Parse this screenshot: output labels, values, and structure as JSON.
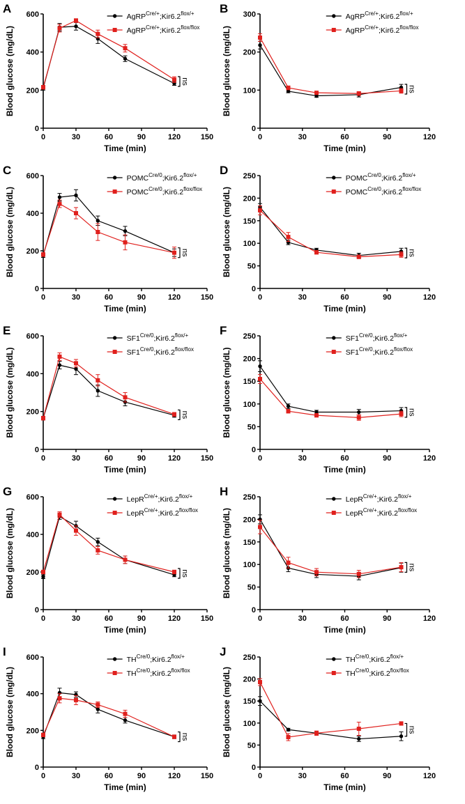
{
  "figure": {
    "xlabel": "Time (min)",
    "ylabel": "Blood glucose (mg/dL)"
  },
  "colors": {
    "control": "#000000",
    "knockout": "#e0201d"
  },
  "chart_data": [
    {
      "panel": "A",
      "type": "line",
      "xlim": [
        0,
        150
      ],
      "ylim": [
        0,
        600
      ],
      "xticks": [
        0,
        30,
        60,
        90,
        120,
        150
      ],
      "yticks": [
        0,
        200,
        400,
        600
      ],
      "x": [
        0,
        15,
        30,
        50,
        75,
        120
      ],
      "xlabel": "Time (min)",
      "ylabel": "Blood glucose (mg/dL)",
      "significance": "ns",
      "legend_pos": "top-right",
      "series": [
        {
          "name_main": "AgRP",
          "name_sup1": "Cre/+",
          "name_mid": ";Kir6.2",
          "name_sup2": "flox/+",
          "color": "#000000",
          "marker": "circle",
          "values": [
            210,
            530,
            535,
            470,
            365,
            235
          ],
          "errors": [
            10,
            20,
            20,
            25,
            15,
            10
          ]
        },
        {
          "name_main": "AgRP",
          "name_sup1": "Cre/+",
          "name_mid": ";Kir6.2",
          "name_sup2": "flox/flox",
          "color": "#e0201d",
          "marker": "square",
          "values": [
            215,
            525,
            565,
            495,
            420,
            255
          ],
          "errors": [
            10,
            20,
            10,
            20,
            20,
            15
          ]
        }
      ]
    },
    {
      "panel": "B",
      "type": "line",
      "xlim": [
        0,
        120
      ],
      "ylim": [
        0,
        300
      ],
      "xticks": [
        0,
        30,
        60,
        90,
        120
      ],
      "yticks": [
        0,
        100,
        200,
        300
      ],
      "x": [
        0,
        20,
        40,
        70,
        100
      ],
      "xlabel": "Time (min)",
      "ylabel": "Blood glucose (mg/dL)",
      "significance": "ns",
      "legend_pos": "top-right",
      "series": [
        {
          "name_main": "AgRP",
          "name_sup1": "Cre/+",
          "name_mid": ";Kir6.2",
          "name_sup2": "flox/+",
          "color": "#000000",
          "marker": "circle",
          "values": [
            218,
            97,
            85,
            88,
            107
          ],
          "errors": [
            10,
            4,
            4,
            6,
            8
          ]
        },
        {
          "name_main": "AgRP",
          "name_sup1": "Cre/+",
          "name_mid": ";Kir6.2",
          "name_sup2": "flox/flox",
          "color": "#e0201d",
          "marker": "square",
          "values": [
            238,
            106,
            93,
            91,
            98
          ],
          "errors": [
            10,
            5,
            4,
            5,
            6
          ]
        }
      ]
    },
    {
      "panel": "C",
      "type": "line",
      "xlim": [
        0,
        150
      ],
      "ylim": [
        0,
        600
      ],
      "xticks": [
        0,
        30,
        60,
        90,
        120,
        150
      ],
      "yticks": [
        0,
        200,
        400,
        600
      ],
      "x": [
        0,
        15,
        30,
        50,
        75,
        120
      ],
      "xlabel": "Time (min)",
      "ylabel": "Blood glucose (mg/dL)",
      "significance": "ns",
      "legend_pos": "top-right",
      "series": [
        {
          "name_main": "POMC",
          "name_sup1": "Cre/0",
          "name_mid": ";Kir6.2",
          "name_sup2": "flox/+",
          "color": "#000000",
          "marker": "circle",
          "values": [
            175,
            485,
            495,
            360,
            305,
            190
          ],
          "errors": [
            10,
            20,
            30,
            25,
            25,
            20
          ]
        },
        {
          "name_main": "POMC",
          "name_sup1": "Cre/0",
          "name_mid": ";Kir6.2",
          "name_sup2": "flox/flox",
          "color": "#e0201d",
          "marker": "square",
          "values": [
            180,
            450,
            400,
            300,
            245,
            190
          ],
          "errors": [
            10,
            20,
            30,
            45,
            40,
            30
          ]
        }
      ]
    },
    {
      "panel": "D",
      "type": "line",
      "xlim": [
        0,
        120
      ],
      "ylim": [
        0,
        250
      ],
      "xticks": [
        0,
        30,
        60,
        90,
        120
      ],
      "yticks": [
        0,
        50,
        100,
        150,
        200,
        250
      ],
      "x": [
        0,
        20,
        40,
        70,
        100
      ],
      "xlabel": "Time (min)",
      "ylabel": "Blood glucose (mg/dL)",
      "significance": "ns",
      "legend_pos": "top-right",
      "series": [
        {
          "name_main": "POMC",
          "name_sup1": "Cre/0",
          "name_mid": ";Kir6.2",
          "name_sup2": "flox/+",
          "color": "#000000",
          "marker": "circle",
          "values": [
            180,
            102,
            85,
            73,
            82
          ],
          "errors": [
            8,
            5,
            4,
            5,
            7
          ]
        },
        {
          "name_main": "POMC",
          "name_sup1": "Cre/0",
          "name_mid": ";Kir6.2",
          "name_sup2": "flox/flox",
          "color": "#e0201d",
          "marker": "square",
          "values": [
            173,
            114,
            80,
            70,
            75
          ],
          "errors": [
            10,
            10,
            4,
            4,
            6
          ]
        }
      ]
    },
    {
      "panel": "E",
      "type": "line",
      "xlim": [
        0,
        150
      ],
      "ylim": [
        0,
        600
      ],
      "xticks": [
        0,
        30,
        60,
        90,
        120,
        150
      ],
      "yticks": [
        0,
        200,
        400,
        600
      ],
      "x": [
        0,
        15,
        30,
        50,
        75,
        120
      ],
      "xlabel": "Time (min)",
      "ylabel": "Blood glucose (mg/dL)",
      "significance": "ns",
      "legend_pos": "top-right",
      "series": [
        {
          "name_main": "SF1",
          "name_sup1": "Cre/0",
          "name_mid": ";Kir6.2",
          "name_sup2": "flox/+",
          "color": "#000000",
          "marker": "circle",
          "values": [
            165,
            445,
            425,
            310,
            250,
            180
          ],
          "errors": [
            10,
            20,
            30,
            30,
            20,
            10
          ]
        },
        {
          "name_main": "SF1",
          "name_sup1": "Cre/0",
          "name_mid": ";Kir6.2",
          "name_sup2": "flox/flox",
          "color": "#e0201d",
          "marker": "square",
          "values": [
            165,
            490,
            455,
            365,
            275,
            185
          ],
          "errors": [
            10,
            20,
            20,
            30,
            25,
            10
          ]
        }
      ]
    },
    {
      "panel": "F",
      "type": "line",
      "xlim": [
        0,
        120
      ],
      "ylim": [
        0,
        250
      ],
      "xticks": [
        0,
        30,
        60,
        90,
        120
      ],
      "yticks": [
        0,
        50,
        100,
        150,
        200,
        250
      ],
      "x": [
        0,
        20,
        40,
        70,
        100
      ],
      "xlabel": "Time (min)",
      "ylabel": "Blood glucose (mg/dL)",
      "significance": "ns",
      "legend_pos": "top-right",
      "series": [
        {
          "name_main": "SF1",
          "name_sup1": "Cre/0",
          "name_mid": ";Kir6.2",
          "name_sup2": "flox/+",
          "color": "#000000",
          "marker": "circle",
          "values": [
            183,
            95,
            82,
            82,
            85
          ],
          "errors": [
            12,
            5,
            4,
            6,
            7
          ]
        },
        {
          "name_main": "SF1",
          "name_sup1": "Cre/0",
          "name_mid": ";Kir6.2",
          "name_sup2": "flox/flox",
          "color": "#e0201d",
          "marker": "square",
          "values": [
            155,
            84,
            75,
            70,
            78
          ],
          "errors": [
            10,
            4,
            4,
            6,
            6
          ]
        }
      ]
    },
    {
      "panel": "G",
      "type": "line",
      "xlim": [
        0,
        150
      ],
      "ylim": [
        0,
        600
      ],
      "xticks": [
        0,
        30,
        60,
        90,
        120,
        150
      ],
      "yticks": [
        0,
        200,
        400,
        600
      ],
      "x": [
        0,
        15,
        30,
        50,
        75,
        120
      ],
      "xlabel": "Time (min)",
      "ylabel": "Blood glucose (mg/dL)",
      "significance": "ns",
      "legend_pos": "top-right",
      "series": [
        {
          "name_main": "LepR",
          "name_sup1": "Cre/+",
          "name_mid": ";Kir6.2",
          "name_sup2": "flox/+",
          "color": "#000000",
          "marker": "circle",
          "values": [
            175,
            495,
            445,
            360,
            265,
            185
          ],
          "errors": [
            10,
            15,
            25,
            20,
            20,
            10
          ]
        },
        {
          "name_main": "LepR",
          "name_sup1": "Cre/+",
          "name_mid": ";Kir6.2",
          "name_sup2": "flox/flox",
          "color": "#e0201d",
          "marker": "square",
          "values": [
            200,
            505,
            420,
            315,
            265,
            200
          ],
          "errors": [
            10,
            15,
            25,
            20,
            20,
            10
          ]
        }
      ]
    },
    {
      "panel": "H",
      "type": "line",
      "xlim": [
        0,
        120
      ],
      "ylim": [
        0,
        250
      ],
      "xticks": [
        0,
        30,
        60,
        90,
        120
      ],
      "yticks": [
        0,
        50,
        100,
        150,
        200,
        250
      ],
      "x": [
        0,
        20,
        40,
        70,
        100
      ],
      "xlabel": "Time (min)",
      "ylabel": "Blood glucose (mg/dL)",
      "significance": "ns",
      "legend_pos": "top-right",
      "series": [
        {
          "name_main": "LepR",
          "name_sup1": "Cre/+",
          "name_mid": ";Kir6.2",
          "name_sup2": "flox/+",
          "color": "#000000",
          "marker": "circle",
          "values": [
            200,
            92,
            78,
            74,
            93
          ],
          "errors": [
            10,
            8,
            7,
            8,
            10
          ]
        },
        {
          "name_main": "LepR",
          "name_sup1": "Cre/+",
          "name_mid": ";Kir6.2",
          "name_sup2": "flox/flox",
          "color": "#e0201d",
          "marker": "square",
          "values": [
            183,
            104,
            83,
            79,
            94
          ],
          "errors": [
            15,
            12,
            8,
            8,
            10
          ]
        }
      ]
    },
    {
      "panel": "I",
      "type": "line",
      "xlim": [
        0,
        150
      ],
      "ylim": [
        0,
        600
      ],
      "xticks": [
        0,
        30,
        60,
        90,
        120,
        150
      ],
      "yticks": [
        0,
        200,
        400,
        600
      ],
      "x": [
        0,
        15,
        30,
        50,
        75,
        120
      ],
      "xlabel": "Time (min)",
      "ylabel": "Blood glucose (mg/dL)",
      "significance": "ns",
      "legend_pos": "top-right",
      "series": [
        {
          "name_main": "TH",
          "name_sup1": "Cre/0",
          "name_mid": ";Kir6.2",
          "name_sup2": "flox/+",
          "color": "#000000",
          "marker": "circle",
          "values": [
            165,
            405,
            395,
            315,
            255,
            165
          ],
          "errors": [
            10,
            25,
            15,
            20,
            15,
            10
          ]
        },
        {
          "name_main": "TH",
          "name_sup1": "Cre/0",
          "name_mid": ";Kir6.2",
          "name_sup2": "flox/flox",
          "color": "#e0201d",
          "marker": "square",
          "values": [
            175,
            375,
            365,
            340,
            290,
            165
          ],
          "errors": [
            10,
            25,
            25,
            15,
            20,
            10
          ]
        }
      ]
    },
    {
      "panel": "J",
      "type": "line",
      "xlim": [
        0,
        120
      ],
      "ylim": [
        0,
        250
      ],
      "xticks": [
        0,
        30,
        60,
        90,
        120
      ],
      "yticks": [
        0,
        50,
        100,
        150,
        200,
        250
      ],
      "x": [
        0,
        20,
        40,
        70,
        100
      ],
      "xlabel": "Time (min)",
      "ylabel": "Blood glucose (mg/dL)",
      "significance": "ns",
      "legend_pos": "top-right",
      "series": [
        {
          "name_main": "TH",
          "name_sup1": "Cre/0",
          "name_mid": ";Kir6.2",
          "name_sup2": "flox/+",
          "color": "#000000",
          "marker": "circle",
          "values": [
            150,
            85,
            77,
            64,
            70
          ],
          "errors": [
            10,
            3,
            4,
            6,
            10
          ]
        },
        {
          "name_main": "TH",
          "name_sup1": "Cre/0",
          "name_mid": ";Kir6.2",
          "name_sup2": "flox/flox",
          "color": "#e0201d",
          "marker": "square",
          "values": [
            193,
            68,
            77,
            87,
            99
          ],
          "errors": [
            8,
            8,
            5,
            15,
            4
          ]
        }
      ]
    }
  ]
}
